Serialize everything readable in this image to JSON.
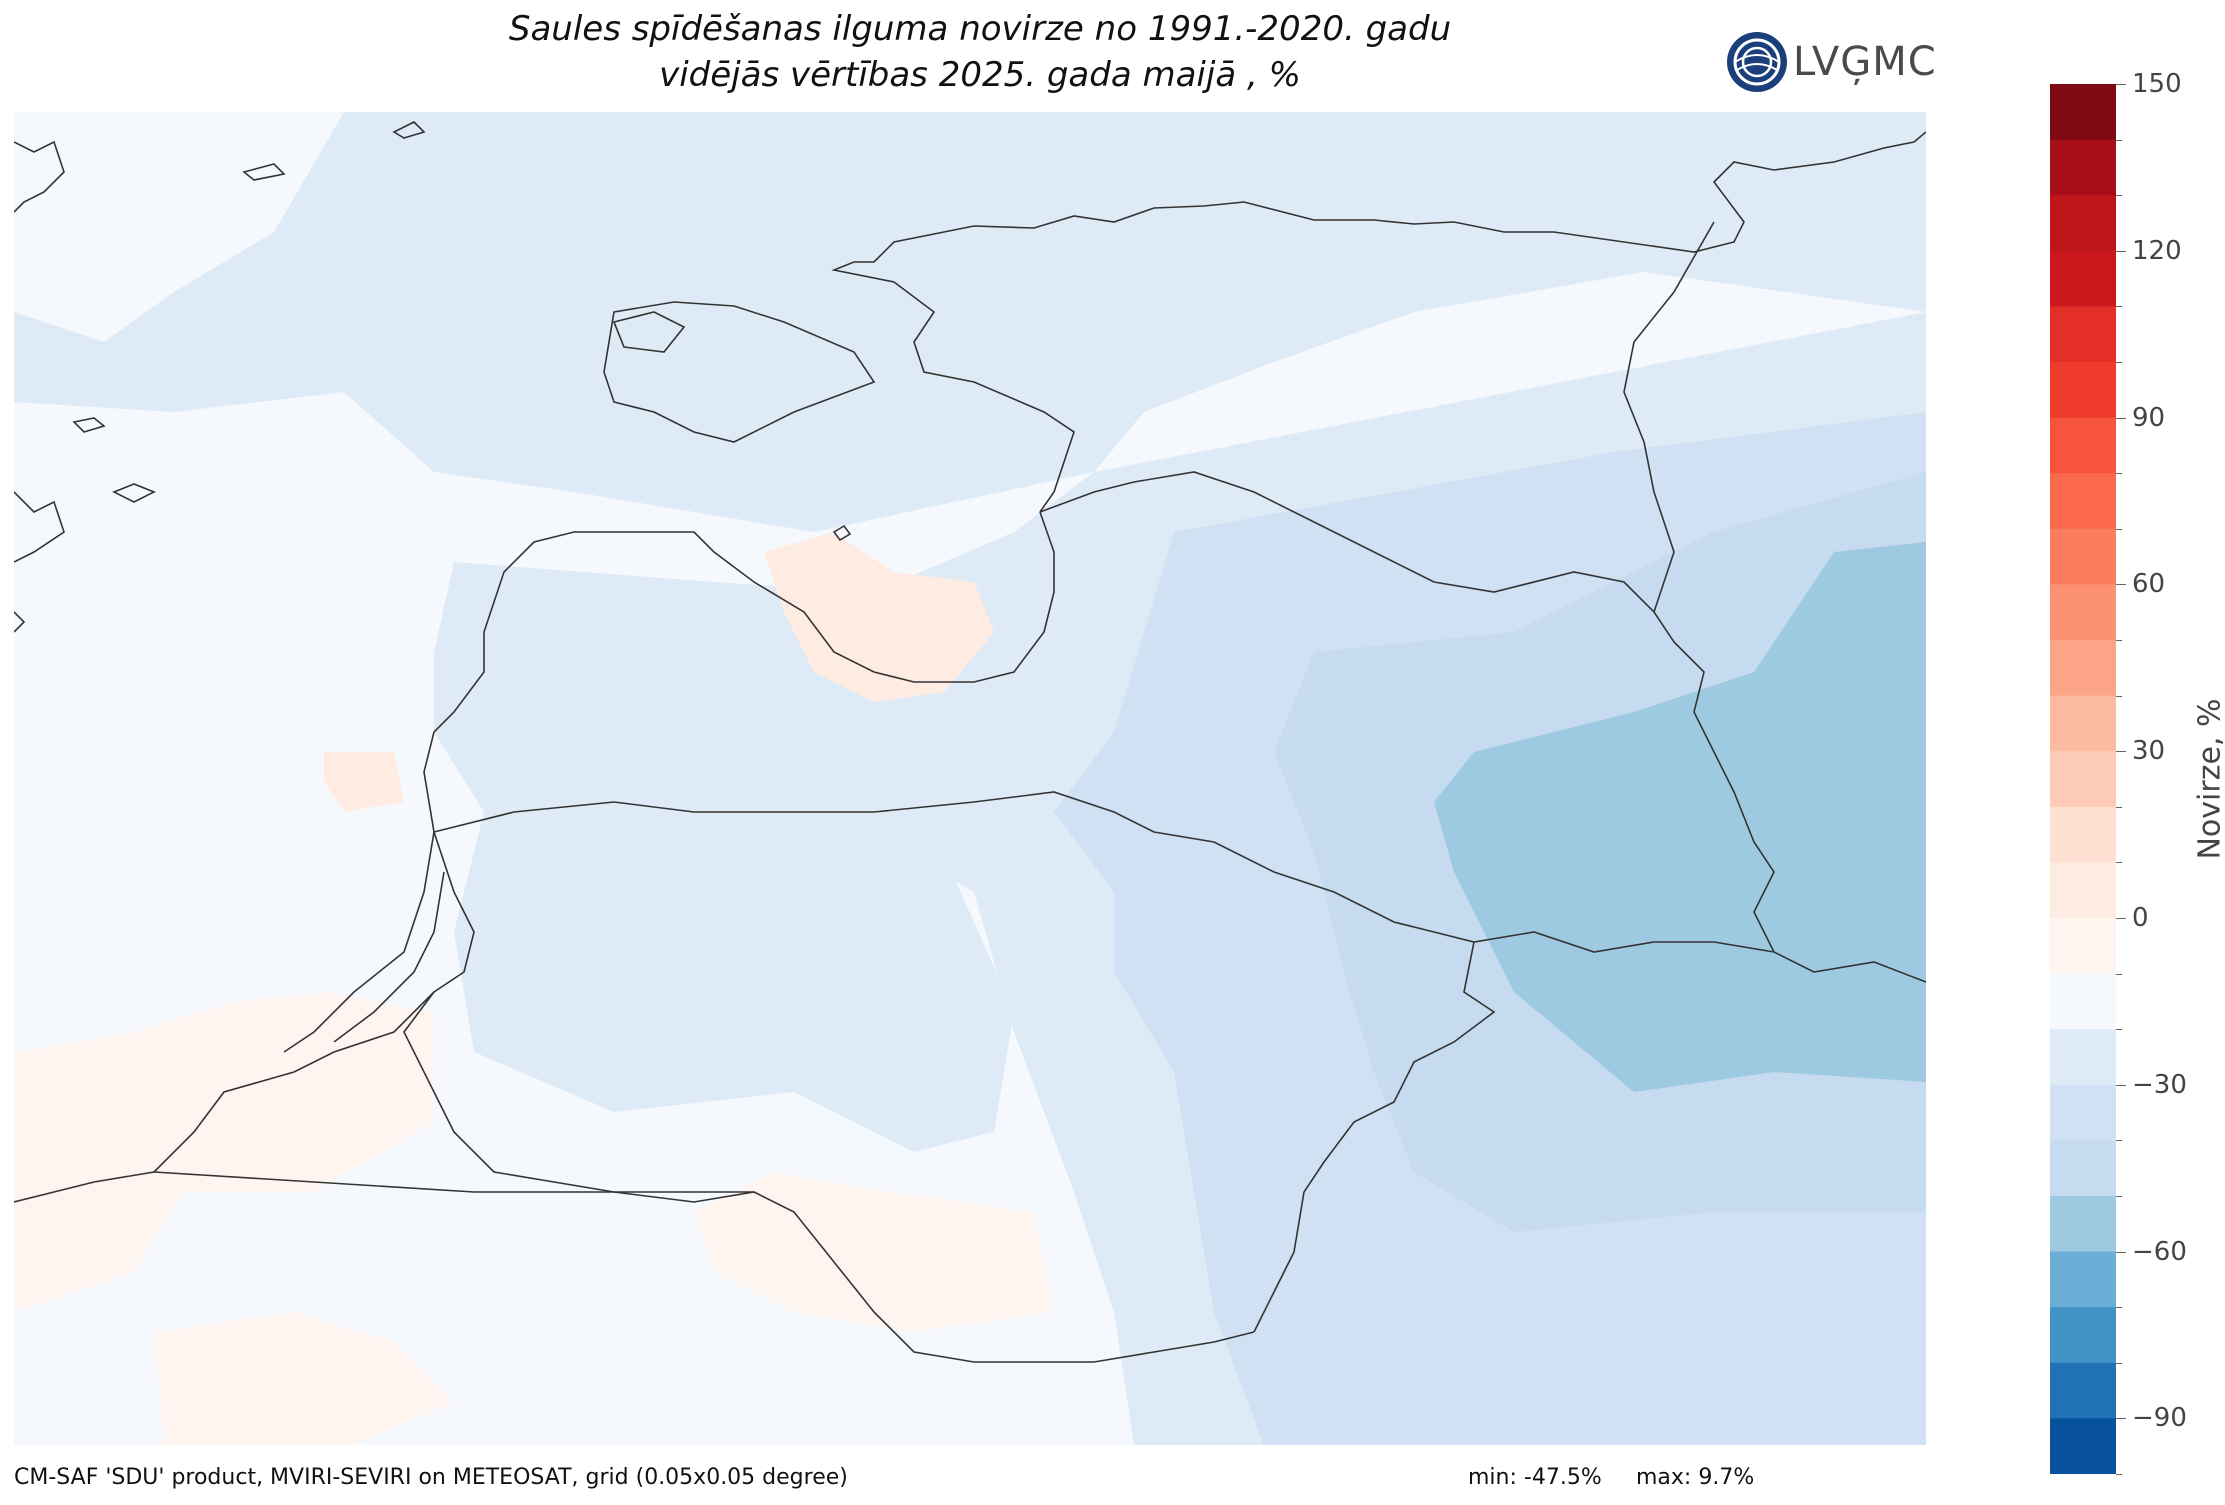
{
  "title": {
    "line1": "Saules spīdēšanas ilguma novirze no 1991.-2020. gadu",
    "line2": "vidējās vērtības 2025. gada maijā , %"
  },
  "logo": {
    "text": "LVĢMC",
    "icon": "lvgmc-globe-logo"
  },
  "colorbar": {
    "label": "Novirze, %",
    "ticks": [
      "150",
      "120",
      "90",
      "60",
      "30",
      "0",
      "−30",
      "−60",
      "−90"
    ],
    "tick_values": [
      150,
      120,
      90,
      60,
      30,
      0,
      -30,
      -60,
      -90
    ],
    "range": [
      -100,
      150
    ],
    "step": 10,
    "colors_top_to_bottom": [
      "#7f0a14",
      "#a50f15",
      "#bd1519",
      "#cb181d",
      "#e32f27",
      "#ef3b2c",
      "#f6553c",
      "#fb6a4a",
      "#fb7d5d",
      "#fc9272",
      "#fca486",
      "#fcbba1",
      "#fdcab5",
      "#fee0d2",
      "#feece3",
      "#fff5f0",
      "#f5f9fe",
      "#deebf7",
      "#cfe1f2",
      "#c6dbef",
      "#9ecae1",
      "#6baed6",
      "#4292c6",
      "#2171b5",
      "#08519c"
    ]
  },
  "map": {
    "palette": {
      "neutral": "#f5f9fe",
      "light_blue": "#deebf7",
      "mid_blue": "#c6dbef",
      "blue": "#9ecae1",
      "light_red": "#fff5f0",
      "pinkish": "#feece3"
    },
    "border_color": "#333333"
  },
  "footer": {
    "source": "CM-SAF 'SDU' product, MVIRI-SEVIRI on METEOSAT, grid (0.05x0.05 degree)",
    "min": "min: -47.5%",
    "max": "max: 9.7%"
  }
}
